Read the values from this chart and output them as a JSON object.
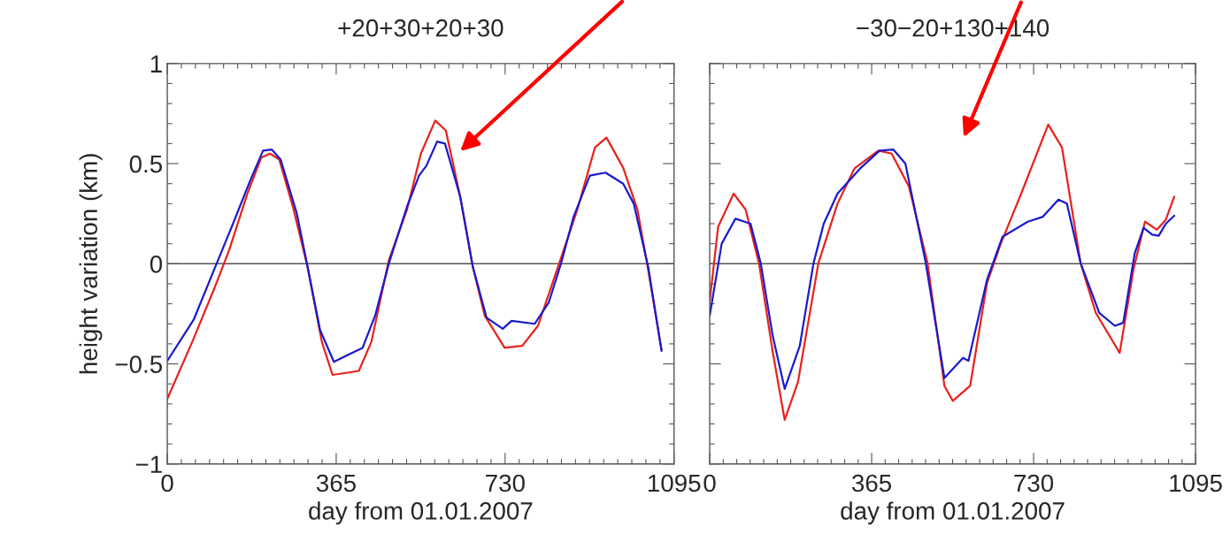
{
  "chart_data": [
    {
      "type": "line",
      "title": "+20+30+20+30",
      "xlabel": "day from 01.01.2007",
      "ylabel": "height variation (km)",
      "xlim": [
        0,
        1095
      ],
      "xticks": [
        0,
        365,
        730,
        1095
      ],
      "ylim": [
        -1,
        1
      ],
      "yticks": [
        {
          "value": -1,
          "label": "−1"
        },
        {
          "value": -0.5,
          "label": "−0.5"
        },
        0,
        0.5,
        1
      ],
      "grid": false,
      "legend": false,
      "ref_lines": [
        {
          "axis": "y",
          "value": 0,
          "color": "#555555"
        }
      ],
      "series": [
        {
          "color": "#e8221c",
          "x": [
            0,
            54,
            104,
            134,
            173,
            203,
            222,
            242,
            272,
            303,
            334,
            357,
            387,
            414,
            441,
            479,
            518,
            548,
            579,
            602,
            633,
            660,
            686,
            729,
            767,
            801,
            847,
            886,
            924,
            949,
            985,
            1016,
            1039,
            1068
          ],
          "values": [
            -0.675,
            -0.39,
            -0.11,
            0.07,
            0.35,
            0.53,
            0.55,
            0.52,
            0.28,
            -0.015,
            -0.39,
            -0.555,
            -0.545,
            -0.535,
            -0.39,
            0.02,
            0.27,
            0.55,
            0.715,
            0.665,
            0.335,
            -0.013,
            -0.26,
            -0.42,
            -0.41,
            -0.31,
            0.003,
            0.27,
            0.58,
            0.63,
            0.48,
            0.27,
            -0.03,
            -0.43
          ]
        },
        {
          "color": "#1a1acc",
          "x": [
            0,
            57,
            107,
            142,
            180,
            207,
            226,
            245,
            280,
            303,
            330,
            360,
            395,
            422,
            449,
            479,
            518,
            544,
            560,
            583,
            600,
            633,
            660,
            690,
            725,
            744,
            794,
            824,
            851,
            878,
            913,
            947,
            985,
            1008,
            1039,
            1068
          ],
          "values": [
            -0.485,
            -0.28,
            0.003,
            0.2,
            0.42,
            0.565,
            0.57,
            0.52,
            0.25,
            -0.013,
            -0.33,
            -0.49,
            -0.45,
            -0.42,
            -0.26,
            0.003,
            0.285,
            0.44,
            0.49,
            0.61,
            0.6,
            0.335,
            -0.013,
            -0.27,
            -0.325,
            -0.285,
            -0.3,
            -0.195,
            0.003,
            0.235,
            0.44,
            0.455,
            0.4,
            0.3,
            -0.013,
            -0.435
          ]
        }
      ]
    },
    {
      "type": "line",
      "title": "−30−20+130+140",
      "xlabel": "day from 01.01.2007",
      "xlim": [
        0,
        1095
      ],
      "xticks": [
        0,
        365,
        730,
        1095
      ],
      "ylim": [
        -1,
        1
      ],
      "yticks": [
        -1,
        -0.5,
        0,
        0.5,
        1
      ],
      "tick_labels": "x",
      "grid": false,
      "legend": false,
      "ref_lines": [
        {
          "axis": "y",
          "value": 0,
          "color": "#555555"
        }
      ],
      "series": [
        {
          "color": "#e8221c",
          "x": [
            0,
            19,
            54,
            81,
            111,
            142,
            169,
            199,
            245,
            288,
            326,
            380,
            410,
            449,
            491,
            529,
            548,
            587,
            625,
            656,
            702,
            763,
            794,
            836,
            870,
            924,
            955,
            981,
            1008,
            1028,
            1047
          ],
          "values": [
            -0.187,
            0.185,
            0.35,
            0.27,
            0.003,
            -0.44,
            -0.78,
            -0.59,
            0.003,
            0.3,
            0.475,
            0.565,
            0.55,
            0.385,
            0.003,
            -0.61,
            -0.685,
            -0.61,
            -0.096,
            0.1,
            0.35,
            0.695,
            0.58,
            0.003,
            -0.245,
            -0.445,
            -0.03,
            0.21,
            0.17,
            0.22,
            0.335
          ]
        },
        {
          "color": "#1a1acc",
          "x": [
            0,
            27,
            58,
            92,
            115,
            142,
            169,
            203,
            234,
            257,
            288,
            341,
            383,
            414,
            441,
            487,
            529,
            571,
            583,
            625,
            660,
            717,
            751,
            786,
            805,
            836,
            878,
            913,
            932,
            958,
            978,
            997,
            1012,
            1028,
            1047
          ],
          "values": [
            -0.26,
            0.1,
            0.225,
            0.2,
            0.003,
            -0.36,
            -0.625,
            -0.41,
            0.003,
            0.2,
            0.35,
            0.48,
            0.565,
            0.57,
            0.5,
            0.003,
            -0.57,
            -0.47,
            -0.485,
            -0.08,
            0.135,
            0.21,
            0.235,
            0.32,
            0.3,
            0.003,
            -0.245,
            -0.31,
            -0.295,
            0.053,
            0.18,
            0.145,
            0.14,
            0.2,
            0.24
          ]
        }
      ]
    }
  ]
}
